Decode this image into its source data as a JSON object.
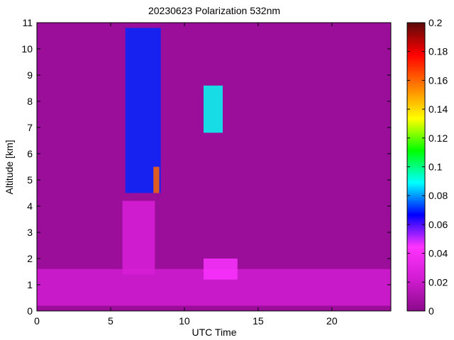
{
  "chart_data": {
    "type": "heatmap",
    "title": "20230623 Polarization 532nm",
    "xlabel": "UTC Time",
    "ylabel": "Altitude [km]",
    "xlim": [
      0,
      24
    ],
    "ylim": [
      0,
      11
    ],
    "xticks": [
      {
        "value": 0,
        "label": "0"
      },
      {
        "value": 5,
        "label": "5"
      },
      {
        "value": 10,
        "label": "10"
      },
      {
        "value": 15,
        "label": "15"
      },
      {
        "value": 20,
        "label": "20"
      }
    ],
    "yticks": [
      {
        "value": 0,
        "label": "0"
      },
      {
        "value": 1,
        "label": "1"
      },
      {
        "value": 2,
        "label": "2"
      },
      {
        "value": 3,
        "label": "3"
      },
      {
        "value": 4,
        "label": "4"
      },
      {
        "value": 5,
        "label": "5"
      },
      {
        "value": 6,
        "label": "6"
      },
      {
        "value": 7,
        "label": "7"
      },
      {
        "value": 8,
        "label": "8"
      },
      {
        "value": 9,
        "label": "9"
      },
      {
        "value": 10,
        "label": "10"
      },
      {
        "value": 11,
        "label": "11"
      }
    ],
    "colorbar": {
      "range": [
        0,
        0.2
      ],
      "ticks": [
        {
          "value": 0,
          "label": "0"
        },
        {
          "value": 0.02,
          "label": "0.02"
        },
        {
          "value": 0.04,
          "label": "0.04"
        },
        {
          "value": 0.06,
          "label": "0.06"
        },
        {
          "value": 0.08,
          "label": "0.08"
        },
        {
          "value": 0.1,
          "label": "0.1"
        },
        {
          "value": 0.12,
          "label": "0.12"
        },
        {
          "value": 0.14,
          "label": "0.14"
        },
        {
          "value": 0.16,
          "label": "0.16"
        },
        {
          "value": 0.18,
          "label": "0.18"
        },
        {
          "value": 0.2,
          "label": "0.2"
        }
      ],
      "stops": [
        "#8a0a8a",
        "#d21cd2",
        "#ff33ff",
        "#0000ff",
        "#00ffff",
        "#00ff00",
        "#ffff00",
        "#ff8000",
        "#ff0000",
        "#5a0a0a"
      ]
    },
    "background_value": 0.005,
    "regions": [
      {
        "name": "boundary layer",
        "x": [
          0,
          24
        ],
        "y": [
          0.2,
          1.6
        ],
        "value": 0.022
      },
      {
        "name": "cirrus streak",
        "x": [
          6.0,
          8.4
        ],
        "y": [
          4.5,
          10.8
        ],
        "value": 0.07
      },
      {
        "name": "depolarizing layer",
        "x": [
          7.9,
          8.3
        ],
        "y": [
          4.5,
          5.5
        ],
        "value": 0.16
      },
      {
        "name": "cloud column",
        "x": [
          11.3,
          12.6
        ],
        "y": [
          6.8,
          8.6
        ],
        "value": 0.09
      },
      {
        "name": "low cloud",
        "x": [
          11.3,
          13.6
        ],
        "y": [
          1.2,
          2.0
        ],
        "value": 0.045
      },
      {
        "name": "aerosol layer",
        "x": [
          5.8,
          8.0
        ],
        "y": [
          1.4,
          4.2
        ],
        "value": 0.025
      }
    ]
  }
}
